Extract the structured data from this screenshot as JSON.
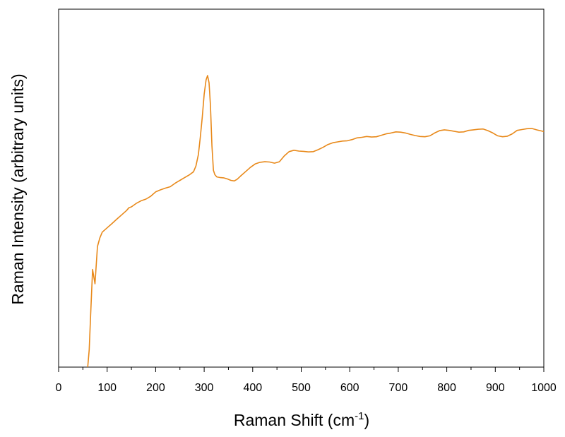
{
  "chart_data": {
    "type": "line",
    "title": "",
    "xlabel": "Raman Shift (cm",
    "xlabel_superscript": "-1",
    "xlabel_suffix": ")",
    "ylabel": "Raman Intensity (arbitrary units)",
    "xlim": [
      0,
      1000
    ],
    "ylim": [
      0,
      100
    ],
    "x_ticks": [
      0,
      100,
      200,
      300,
      400,
      500,
      600,
      700,
      800,
      900,
      1000
    ],
    "x_tick_labels": [
      "0",
      "100",
      "200",
      "300",
      "400",
      "500",
      "600",
      "700",
      "800",
      "900",
      "1000"
    ],
    "y_ticks_labeled": false,
    "grid": false,
    "legend": "none",
    "line_color": "#E8891A",
    "series": [
      {
        "x": [
          60,
          63,
          66,
          70,
          75,
          80,
          85,
          90,
          100,
          110,
          120,
          130,
          140,
          145,
          150,
          160,
          170,
          180,
          190,
          200,
          210,
          220,
          230,
          240,
          250,
          260,
          270,
          278,
          283,
          288,
          292,
          296,
          300,
          304,
          307,
          310,
          313,
          316,
          319,
          322,
          326,
          332,
          340,
          348,
          355,
          362,
          368,
          375,
          385,
          395,
          405,
          415,
          425,
          435,
          445,
          455,
          465,
          475,
          485,
          495,
          505,
          515,
          525,
          535,
          545,
          555,
          565,
          575,
          585,
          595,
          605,
          615,
          625,
          635,
          645,
          655,
          665,
          675,
          685,
          695,
          705,
          715,
          725,
          735,
          745,
          755,
          765,
          775,
          785,
          795,
          805,
          815,
          825,
          835,
          845,
          855,
          865,
          875,
          885,
          895,
          905,
          915,
          925,
          935,
          945,
          955,
          965,
          975,
          985,
          995,
          1000
        ],
        "y": [
          0,
          6,
          18,
          34,
          29,
          42,
          45,
          47,
          48.5,
          50,
          51.5,
          53,
          54.5,
          55.5,
          55.8,
          57,
          57.9,
          58.5,
          59.5,
          61,
          61.7,
          62.3,
          62.8,
          64,
          65,
          66,
          67,
          68,
          70,
          74,
          80,
          87,
          95,
          100,
          101.5,
          99,
          91,
          77,
          68.5,
          67,
          66.2,
          66,
          65.9,
          65.5,
          65,
          64.8,
          65.4,
          66.5,
          68,
          69.5,
          70.7,
          71.3,
          71.5,
          71.4,
          71,
          71.5,
          73.5,
          75,
          75.5,
          75.2,
          75.1,
          74.9,
          75,
          75.7,
          76.5,
          77.5,
          78.1,
          78.4,
          78.7,
          78.8,
          79.2,
          79.8,
          80,
          80.3,
          80.1,
          80.2,
          80.7,
          81.2,
          81.5,
          81.9,
          81.8,
          81.5,
          81,
          80.6,
          80.3,
          80.2,
          80.5,
          81.5,
          82.3,
          82.6,
          82.4,
          82.1,
          81.8,
          81.9,
          82.4,
          82.6,
          82.8,
          82.9,
          82.3,
          81.5,
          80.5,
          80.2,
          80.4,
          81.2,
          82.4,
          82.7,
          83,
          83.1,
          82.6,
          82.2,
          82
        ]
      }
    ]
  }
}
